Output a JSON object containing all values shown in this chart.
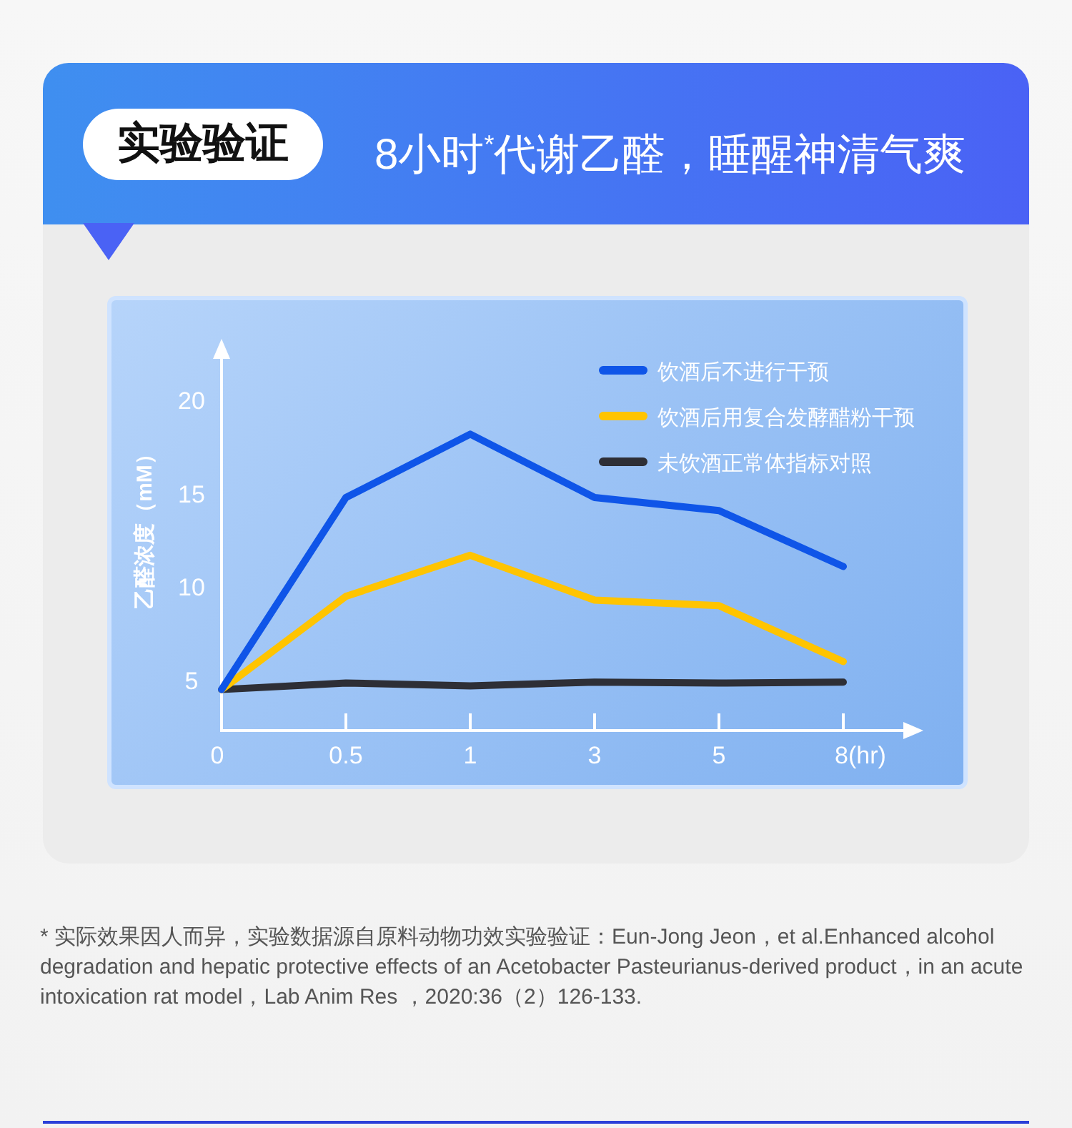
{
  "chart_data": {
    "type": "line",
    "title": "实验验证",
    "subtitle": "8小时$^{*}$代谢乙醛，睡醒神清气爽",
    "ylabel": "乙醛浓度（mM）",
    "categories": [
      "0",
      "0.5",
      "1",
      "3",
      "5",
      "8(hr)"
    ],
    "series": [
      {
        "name": "饮酒后不进行干预",
        "color": "#0f55e8",
        "values": [
          4.5,
          14.8,
          18.2,
          14.8,
          14.1,
          11.1
        ]
      },
      {
        "name": "饮酒后用复合发酵醋粉干预",
        "color": "#ffc400",
        "values": [
          4.5,
          9.5,
          11.7,
          9.3,
          9.0,
          6.0
        ]
      },
      {
        "name": "未饮酒正常体指标对照",
        "color": "#2e2f36",
        "values": [
          4.5,
          4.85,
          4.7,
          4.9,
          4.85,
          4.9
        ]
      }
    ],
    "ylim": [
      2.3,
      22.7
    ],
    "yticks": [
      5,
      10,
      15,
      20
    ],
    "legend": "top right",
    "line_style": "solid",
    "grid": false,
    "annotations": [
      "* 实际效果因人而异，实验数据源自原料动物功效实验验证：Eun-Jong Jeon，et al.Enhanced alcohol degradation and hepatic protective effects of an Acetobacter Pasteurianus-derived product，in an acute intoxication rat model，Lab Anim Res ，2020:36（2）126-133."
    ]
  }
}
